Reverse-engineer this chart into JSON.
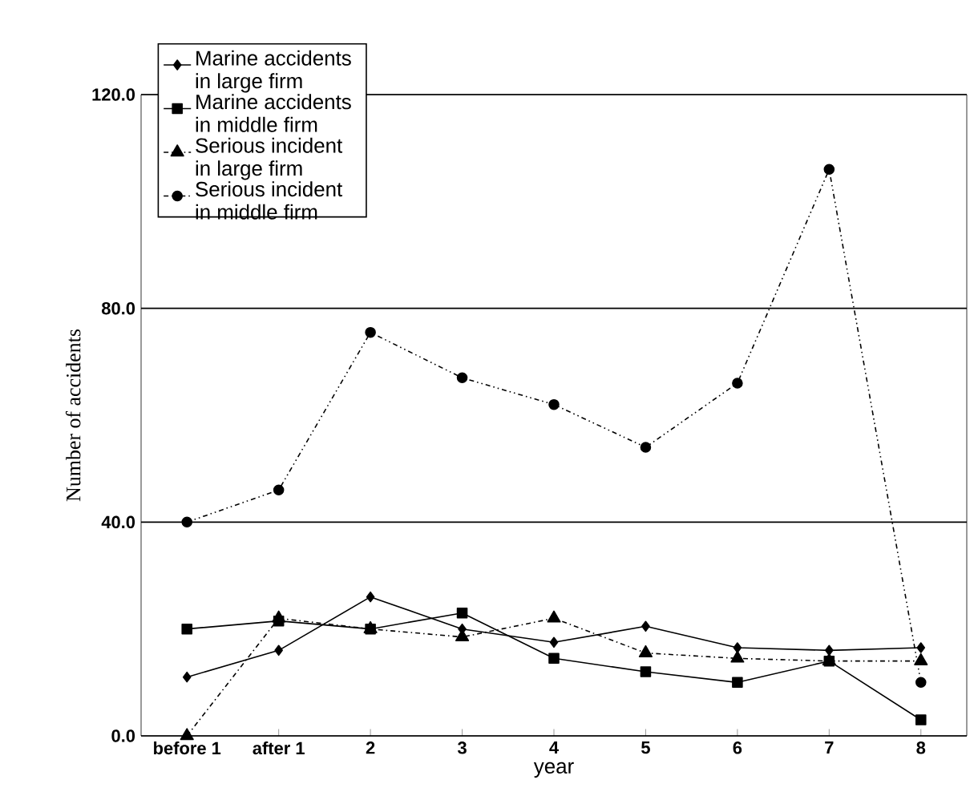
{
  "chart_data": {
    "type": "line",
    "xlabel": "year",
    "ylabel": "Number of accidents",
    "categories": [
      "before 1",
      "after 1",
      "2",
      "3",
      "4",
      "5",
      "6",
      "7",
      "8"
    ],
    "series": [
      {
        "name": "Marine accidents in large firm",
        "color": "#000000",
        "marker": "diamond",
        "line_style": "solid",
        "values": [
          11,
          16,
          26,
          20,
          17.5,
          20.5,
          16.5,
          16,
          16.5
        ]
      },
      {
        "name": "Marine accidents in middle firm",
        "color": "#000000",
        "marker": "square",
        "line_style": "solid",
        "values": [
          20,
          21.5,
          20,
          23,
          14.5,
          12,
          10,
          14,
          3
        ]
      },
      {
        "name": "Serious incident in large firm",
        "color": "#000000",
        "marker": "triangle",
        "line_style": "dashed",
        "values": [
          0,
          22,
          20,
          18.5,
          22,
          15.5,
          14.5,
          14,
          14
        ]
      },
      {
        "name": "Serious incident in middle firm",
        "color": "#000000",
        "marker": "circle",
        "line_style": "dotted",
        "values": [
          40,
          46,
          75.5,
          67,
          62,
          54,
          66,
          106,
          10
        ]
      }
    ],
    "ylim": [
      0,
      120
    ],
    "yticks": [
      {
        "value": 0,
        "label": "0.0"
      },
      {
        "value": 40,
        "label": "40.0"
      },
      {
        "value": 80,
        "label": "80.0"
      },
      {
        "value": 120,
        "label": "120.0"
      }
    ],
    "grid": "y",
    "legend": "top left"
  }
}
